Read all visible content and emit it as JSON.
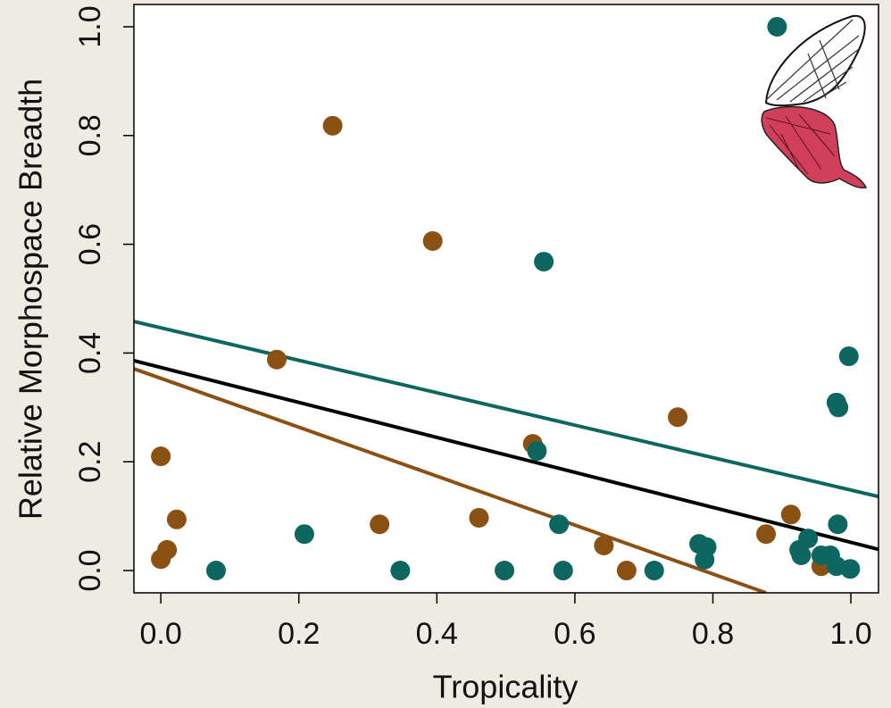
{
  "chart_data": {
    "type": "scatter",
    "x_label": "Tropicality",
    "y_label": "Relative Morphospace Breadth",
    "xlim": [
      -0.039,
      1.04
    ],
    "ylim": [
      -0.041,
      1.041
    ],
    "xticks": [
      {
        "value": 0,
        "label": "0.0"
      },
      0.2,
      0.4,
      0.6,
      0.8,
      {
        "value": 1,
        "label": "1.0"
      }
    ],
    "yticks": [
      {
        "value": 0,
        "label": "0.0"
      },
      0.2,
      0.4,
      0.6,
      0.8,
      {
        "value": 1,
        "label": "1.0"
      }
    ],
    "series": [
      {
        "color": "#8b5113",
        "x": [
          0.0,
          0.009,
          0.023,
          0.0,
          0.168,
          0.249,
          0.317,
          0.394,
          0.461,
          0.539,
          0.642,
          0.675,
          0.749,
          0.877,
          0.913,
          0.957
        ],
        "values": [
          0.21,
          0.038,
          0.094,
          0.021,
          0.388,
          0.818,
          0.085,
          0.606,
          0.097,
          0.233,
          0.046,
          0.0,
          0.282,
          0.067,
          0.103,
          0.008
        ]
      },
      {
        "color": "#0e6660",
        "x": [
          0.08,
          0.208,
          0.347,
          0.498,
          0.555,
          0.545,
          0.577,
          0.583,
          0.715,
          0.78,
          0.791,
          0.788,
          0.893,
          0.925,
          0.938,
          0.928,
          0.957,
          0.97,
          0.979,
          0.999,
          0.981,
          0.979,
          0.982,
          0.997
        ],
        "values": [
          0.0,
          0.067,
          0.0,
          0.0,
          0.568,
          0.22,
          0.085,
          0.0,
          0.0,
          0.049,
          0.043,
          0.02,
          1.0,
          0.038,
          0.059,
          0.028,
          0.028,
          0.028,
          0.008,
          0.003,
          0.085,
          0.309,
          0.3,
          0.394
        ]
      }
    ],
    "fit_lines": [
      {
        "color": "#0e6660",
        "x": [
          -0.039,
          1.04
        ],
        "values": [
          0.458,
          0.136
        ]
      },
      {
        "color": "#000000",
        "x": [
          -0.039,
          1.04
        ],
        "values": [
          0.386,
          0.039
        ]
      },
      {
        "color": "#8b5113",
        "x": [
          -0.039,
          0.877
        ],
        "values": [
          0.371,
          -0.041
        ]
      }
    ]
  }
}
